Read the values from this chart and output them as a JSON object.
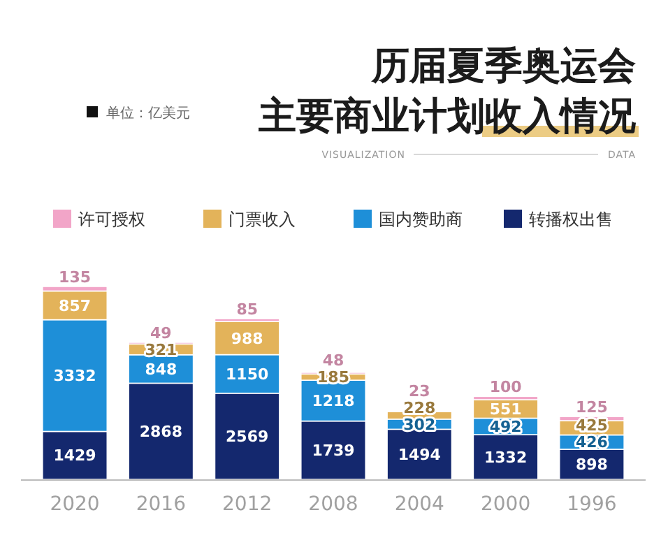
{
  "chart_data": {
    "type": "bar",
    "title": "历届夏季奥运会主要商业计划收入情况",
    "subtitle": "单位：亿美元",
    "annotations": [
      "DATA",
      "VISUALIZATION"
    ],
    "categories": [
      "2020",
      "2016",
      "2012",
      "2008",
      "2004",
      "2000",
      "1996"
    ],
    "stacked": true,
    "data_labels": true,
    "legend": "top",
    "series": [
      {
        "name": "转播权出售",
        "color": "#14286e",
        "values": [
          1429,
          2868,
          2569,
          1739,
          1494,
          1332,
          898
        ]
      },
      {
        "name": "国内赞助商",
        "color": "#1e8fd8",
        "values": [
          3332,
          848,
          1150,
          1218,
          302,
          492,
          426
        ]
      },
      {
        "name": "门票收入",
        "color": "#e3b35a",
        "values": [
          857,
          321,
          988,
          185,
          228,
          551,
          425
        ]
      },
      {
        "name": "许可授权",
        "color": "#f2a5c8",
        "values": [
          135,
          49,
          85,
          48,
          23,
          100,
          125
        ]
      }
    ]
  }
}
